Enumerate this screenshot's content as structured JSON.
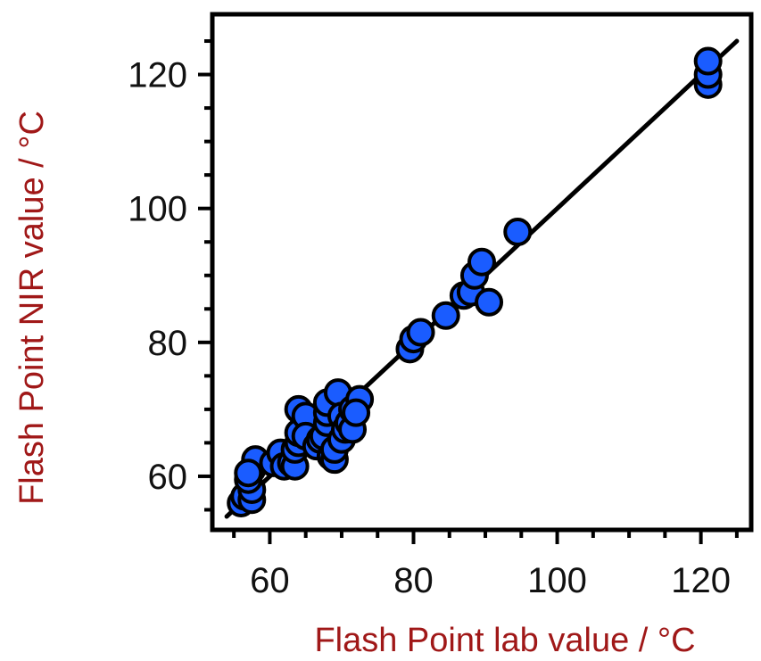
{
  "chart_data": {
    "type": "scatter",
    "xlabel": "Flash Point lab value / °C",
    "ylabel": "Flash Point NIR value / °C",
    "xlim": [
      52,
      127
    ],
    "ylim": [
      52,
      129
    ],
    "x_ticks": [
      60,
      80,
      100,
      120
    ],
    "y_ticks": [
      60,
      80,
      100,
      120
    ],
    "x_tick_labels": [
      "60",
      "80",
      "100",
      "120"
    ],
    "y_tick_labels": [
      "60",
      "80",
      "100",
      "120"
    ],
    "grid": false,
    "legend": "none",
    "series": [
      {
        "points": [
          [
            56,
            56
          ],
          [
            56.5,
            57
          ],
          [
            57.5,
            56.5
          ],
          [
            57.5,
            58
          ],
          [
            57,
            59.5
          ],
          [
            57.5,
            61
          ],
          [
            58,
            62.5
          ],
          [
            57,
            60.5
          ],
          [
            60.5,
            62
          ],
          [
            61.5,
            63.5
          ],
          [
            62,
            61.5
          ],
          [
            63,
            62
          ],
          [
            63.5,
            61.5
          ],
          [
            63.5,
            64
          ],
          [
            64,
            65
          ],
          [
            64,
            66.5
          ],
          [
            64,
            70
          ],
          [
            65,
            69
          ],
          [
            65,
            66
          ],
          [
            66.5,
            64.5
          ],
          [
            67,
            65.5
          ],
          [
            67.5,
            66
          ],
          [
            68,
            68
          ],
          [
            68,
            69.5
          ],
          [
            68,
            71
          ],
          [
            68.5,
            63
          ],
          [
            69,
            62.5
          ],
          [
            69,
            64
          ],
          [
            69.5,
            72.5
          ],
          [
            70,
            65.5
          ],
          [
            70,
            69
          ],
          [
            70.5,
            67
          ],
          [
            71,
            68
          ],
          [
            71.5,
            70
          ],
          [
            71.5,
            67
          ],
          [
            72.5,
            71.5
          ],
          [
            72,
            69.5
          ],
          [
            79.5,
            79
          ],
          [
            80,
            80.5
          ],
          [
            81,
            81.5
          ],
          [
            84.5,
            84
          ],
          [
            87,
            87
          ],
          [
            88,
            87.5
          ],
          [
            88.5,
            90
          ],
          [
            89.5,
            92
          ],
          [
            90.5,
            86
          ],
          [
            94.5,
            96.5
          ],
          [
            121,
            118.5
          ],
          [
            121,
            120
          ],
          [
            121,
            122
          ]
        ]
      }
    ],
    "fit_line": {
      "x": [
        54,
        125
      ],
      "y": [
        54,
        125
      ]
    },
    "colors": {
      "marker_fill": "#1a5cff",
      "marker_stroke": "#000000",
      "line": "#000000",
      "axis_label": "#a01818",
      "tick_label": "#111111"
    }
  }
}
